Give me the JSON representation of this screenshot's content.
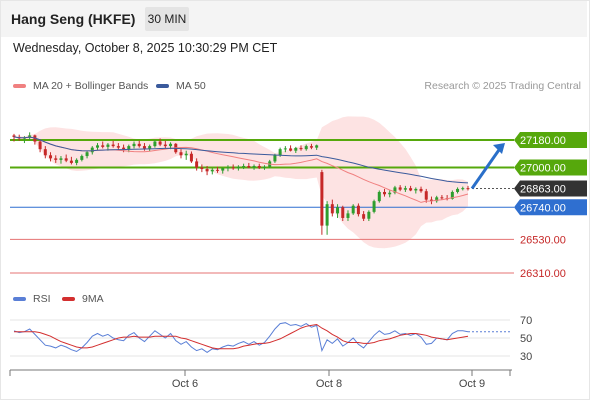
{
  "header": {
    "title": "Hang Seng (HKFE)",
    "interval": "30 MIN",
    "datetime": "Wednesday, October 8, 2025 10:30:29 PM CET"
  },
  "legend": {
    "ma20_label": "MA 20 + Bollinger Bands",
    "ma50_label": "MA 50",
    "credit": "Research © 2025 Trading Central",
    "rsi_label": "RSI",
    "rsi_ma_label": "9MA"
  },
  "colors": {
    "bull": "#2e9e2e",
    "bear": "#c62828",
    "ma20": "#f08080",
    "bollinger_fill": "#fde3e3",
    "ma50": "#3a5a9c",
    "green_level": "#56a80c",
    "blue_level": "#2f6fd0",
    "red_level": "#e57373",
    "last_price_tag": "#333333",
    "rsi_line": "#5a7fd6",
    "rsi_ma_line": "#d32f2f",
    "arrow": "#2a6fc9"
  },
  "chart_data": [
    {
      "type": "candlestick",
      "title": "Hang Seng (HKFE)",
      "interval": "30 MIN",
      "x_labels": [
        "Oct 6",
        "Oct 8",
        "Oct 9"
      ],
      "ylim": [
        26250,
        27300
      ],
      "last_price": 26863,
      "levels": [
        {
          "value": 27180,
          "label": "27180.00",
          "role": "resistance",
          "style": "green"
        },
        {
          "value": 27000,
          "label": "27000.00",
          "role": "resistance",
          "style": "green"
        },
        {
          "value": 26863,
          "label": "26863.00",
          "role": "last price",
          "style": "dark"
        },
        {
          "value": 26740,
          "label": "26740.00",
          "role": "pivot",
          "style": "blue"
        },
        {
          "value": 26530,
          "label": "26530.00",
          "role": "support",
          "style": "red"
        },
        {
          "value": 26310,
          "label": "26310.00",
          "role": "support",
          "style": "red"
        }
      ],
      "arrow": {
        "direction": "up",
        "from": 26863,
        "to": 27180
      },
      "candles": [
        [
          27210,
          27220,
          27170,
          27200
        ],
        [
          27200,
          27215,
          27175,
          27190
        ],
        [
          27190,
          27205,
          27160,
          27195
        ],
        [
          27195,
          27230,
          27180,
          27210
        ],
        [
          27210,
          27215,
          27150,
          27170
        ],
        [
          27170,
          27185,
          27100,
          27120
        ],
        [
          27120,
          27140,
          27060,
          27080
        ],
        [
          27080,
          27100,
          27040,
          27060
        ],
        [
          27060,
          27080,
          27030,
          27050
        ],
        [
          27050,
          27075,
          27025,
          27060
        ],
        [
          27060,
          27085,
          27035,
          27045
        ],
        [
          27045,
          27070,
          27020,
          27030
        ],
        [
          27030,
          27060,
          27015,
          27050
        ],
        [
          27050,
          27085,
          27040,
          27075
        ],
        [
          27075,
          27110,
          27060,
          27100
        ],
        [
          27100,
          27140,
          27085,
          27130
        ],
        [
          27130,
          27160,
          27115,
          27145
        ],
        [
          27145,
          27170,
          27125,
          27135
        ],
        [
          27135,
          27160,
          27110,
          27150
        ],
        [
          27150,
          27175,
          27130,
          27140
        ],
        [
          27140,
          27160,
          27115,
          27130
        ],
        [
          27130,
          27150,
          27100,
          27120
        ],
        [
          27120,
          27150,
          27100,
          27140
        ],
        [
          27140,
          27170,
          27125,
          27155
        ],
        [
          27155,
          27175,
          27130,
          27140
        ],
        [
          27140,
          27160,
          27110,
          27125
        ],
        [
          27125,
          27150,
          27105,
          27140
        ],
        [
          27140,
          27180,
          27130,
          27170
        ],
        [
          27170,
          27190,
          27140,
          27150
        ],
        [
          27150,
          27175,
          27125,
          27140
        ],
        [
          27140,
          27165,
          27120,
          27155
        ],
        [
          27155,
          27160,
          27090,
          27100
        ],
        [
          27100,
          27120,
          27060,
          27080
        ],
        [
          27080,
          27110,
          27050,
          27090
        ],
        [
          27090,
          27105,
          27030,
          27040
        ],
        [
          27040,
          27060,
          26980,
          27000
        ],
        [
          27000,
          27020,
          26970,
          26990
        ],
        [
          26990,
          27010,
          26950,
          26975
        ],
        [
          26975,
          26995,
          26955,
          26985
        ],
        [
          26985,
          27005,
          26965,
          26980
        ],
        [
          26980,
          27000,
          26960,
          26995
        ],
        [
          26995,
          27015,
          26975,
          27000
        ],
        [
          27000,
          27020,
          26985,
          26995
        ],
        [
          26995,
          27015,
          26980,
          27005
        ],
        [
          27005,
          27025,
          26990,
          27010
        ],
        [
          27010,
          27030,
          26995,
          27000
        ],
        [
          27000,
          27020,
          26985,
          27010
        ],
        [
          27010,
          27025,
          26990,
          26998
        ],
        [
          26998,
          27015,
          26985,
          27005
        ],
        [
          27005,
          27050,
          26995,
          27040
        ],
        [
          27040,
          27090,
          27030,
          27080
        ],
        [
          27080,
          27130,
          27070,
          27120
        ],
        [
          27120,
          27140,
          27100,
          27125
        ],
        [
          27125,
          27145,
          27105,
          27110
        ],
        [
          27110,
          27135,
          27095,
          27128
        ],
        [
          27128,
          27145,
          27110,
          27120
        ],
        [
          27120,
          27150,
          27110,
          27140
        ],
        [
          27140,
          27155,
          27120,
          27130
        ],
        [
          27130,
          27150,
          27115,
          27145
        ],
        [
          26970,
          26985,
          26560,
          26620
        ],
        [
          26620,
          26780,
          26560,
          26760
        ],
        [
          26760,
          26790,
          26680,
          26700
        ],
        [
          26700,
          26760,
          26670,
          26740
        ],
        [
          26740,
          26750,
          26650,
          26670
        ],
        [
          26670,
          26720,
          26650,
          26700
        ],
        [
          26700,
          26760,
          26690,
          26750
        ],
        [
          26750,
          26765,
          26680,
          26695
        ],
        [
          26695,
          26715,
          26650,
          26665
        ],
        [
          26665,
          26720,
          26650,
          26710
        ],
        [
          26710,
          26790,
          26700,
          26780
        ],
        [
          26780,
          26850,
          26770,
          26840
        ],
        [
          26840,
          26860,
          26810,
          26825
        ],
        [
          26825,
          26850,
          26805,
          26835
        ],
        [
          26835,
          26880,
          26825,
          26870
        ],
        [
          26870,
          26885,
          26845,
          26855
        ],
        [
          26855,
          26880,
          26840,
          26865
        ],
        [
          26865,
          26880,
          26845,
          26850
        ],
        [
          26850,
          26870,
          26830,
          26860
        ],
        [
          26860,
          26875,
          26835,
          26845
        ],
        [
          26845,
          26860,
          26770,
          26790
        ],
        [
          26790,
          26810,
          26760,
          26780
        ],
        [
          26780,
          26815,
          26770,
          26805
        ],
        [
          26805,
          26820,
          26790,
          26800
        ],
        [
          26800,
          26820,
          26785,
          26795
        ],
        [
          26795,
          26850,
          26790,
          26840
        ],
        [
          26840,
          26870,
          26830,
          26860
        ],
        [
          26860,
          26875,
          26850,
          26865
        ],
        [
          26865,
          26880,
          26850,
          26863
        ]
      ]
    },
    {
      "type": "line",
      "title": "RSI",
      "yticks": [
        30,
        50,
        70
      ],
      "ylim": [
        20,
        80
      ],
      "series": [
        {
          "name": "RSI",
          "values": [
            58,
            56,
            57,
            60,
            54,
            48,
            42,
            41,
            39,
            42,
            40,
            37,
            35,
            39,
            45,
            52,
            55,
            52,
            54,
            50,
            48,
            47,
            53,
            56,
            50,
            46,
            52,
            58,
            54,
            50,
            55,
            47,
            43,
            46,
            40,
            36,
            38,
            34,
            38,
            37,
            40,
            42,
            41,
            44,
            46,
            43,
            46,
            42,
            45,
            52,
            60,
            66,
            67,
            64,
            65,
            63,
            66,
            62,
            64,
            36,
            48,
            44,
            49,
            41,
            45,
            50,
            43,
            39,
            46,
            53,
            58,
            54,
            55,
            58,
            54,
            55,
            53,
            55,
            51,
            43,
            44,
            50,
            49,
            48,
            55,
            58,
            58,
            57
          ]
        },
        {
          "name": "9MA",
          "values": [
            57,
            57,
            57,
            57,
            57,
            56,
            54,
            52,
            49,
            46,
            44,
            42,
            40,
            39,
            39,
            40,
            42,
            44,
            46,
            48,
            50,
            51,
            51,
            52,
            51,
            51,
            51,
            52,
            52,
            52,
            52,
            52,
            50,
            49,
            47,
            45,
            43,
            41,
            39,
            38,
            38,
            38,
            38,
            39,
            41,
            42,
            43,
            44,
            44,
            45,
            47,
            49,
            52,
            55,
            58,
            61,
            63,
            64,
            65,
            61,
            58,
            54,
            51,
            47,
            45,
            45,
            45,
            44,
            44,
            45,
            47,
            48,
            49,
            51,
            53,
            54,
            55,
            55,
            54,
            53,
            51,
            50,
            49,
            48,
            49,
            50,
            51,
            52
          ]
        }
      ]
    }
  ]
}
